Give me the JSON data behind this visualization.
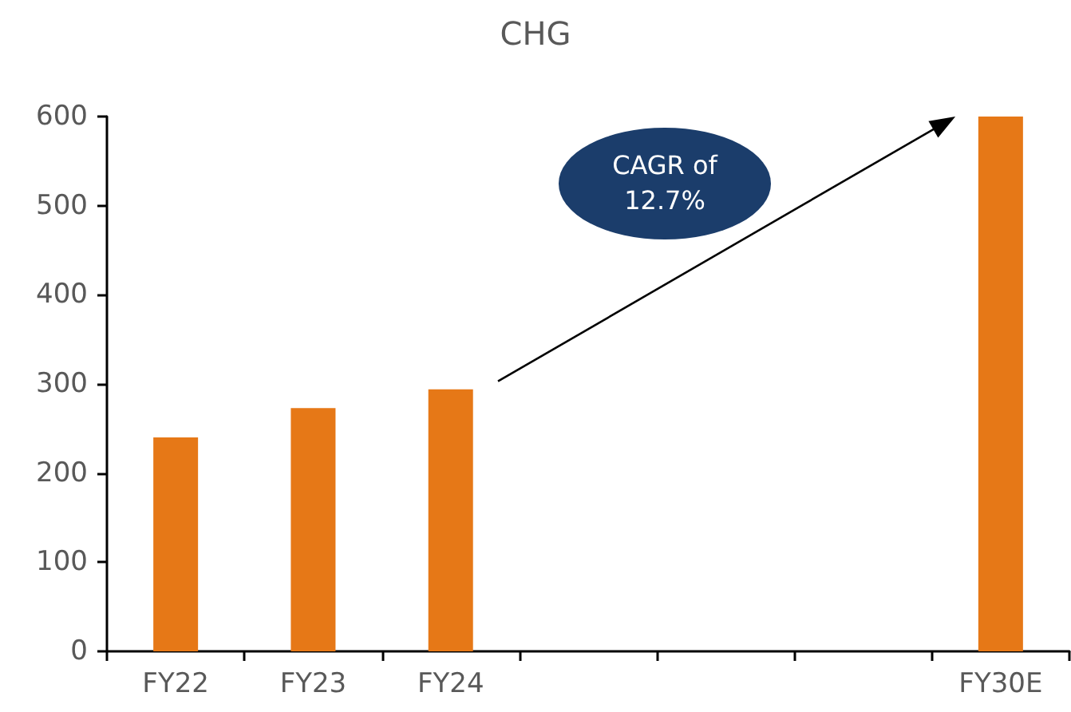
{
  "chart_data": {
    "type": "bar",
    "title": "CHG",
    "categories": [
      "FY22",
      "FY23",
      "FY24",
      null,
      null,
      null,
      "FY30E"
    ],
    "values": [
      240,
      273,
      294,
      null,
      null,
      null,
      600
    ],
    "color": "#e67817",
    "ylim": [
      0,
      600
    ],
    "yticks": [
      0,
      100,
      200,
      300,
      400,
      500,
      600
    ],
    "grid": false,
    "annotations": [
      "CAGR of 12.7%"
    ]
  }
}
